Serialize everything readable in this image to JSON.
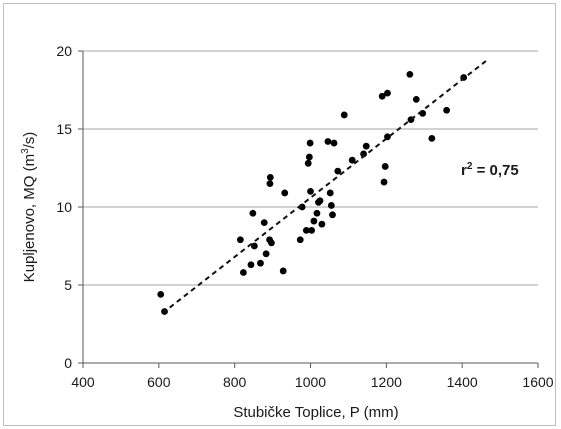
{
  "chart_data": {
    "type": "scatter",
    "xlabel": "Stubičke Toplice, P (mm)",
    "ylabel_main": "Kupljenovo, MQ (m",
    "ylabel_sup": "3",
    "ylabel_tail": "/s)",
    "xlim": [
      400,
      1600
    ],
    "ylim": [
      0,
      20
    ],
    "x_ticks": [
      "400",
      "600",
      "800",
      "1000",
      "1200",
      "1400",
      "1600"
    ],
    "y_ticks": [
      "0",
      "5",
      "10",
      "15",
      "20"
    ],
    "grid": "horizontal",
    "legend": "none",
    "annotation": {
      "main": "r",
      "sup": "2",
      "tail": " = 0,75"
    },
    "trendline": {
      "style": "dashed",
      "x": [
        610,
        1465
      ],
      "y": [
        3.2,
        19.4
      ]
    },
    "points": [
      {
        "x": 605,
        "y": 4.4
      },
      {
        "x": 615,
        "y": 3.3
      },
      {
        "x": 815,
        "y": 7.9
      },
      {
        "x": 823,
        "y": 5.8
      },
      {
        "x": 843,
        "y": 6.3
      },
      {
        "x": 848,
        "y": 9.6
      },
      {
        "x": 852,
        "y": 7.5
      },
      {
        "x": 868,
        "y": 6.4
      },
      {
        "x": 878,
        "y": 9.0
      },
      {
        "x": 883,
        "y": 7.0
      },
      {
        "x": 892,
        "y": 7.9
      },
      {
        "x": 893,
        "y": 11.5
      },
      {
        "x": 894,
        "y": 11.9
      },
      {
        "x": 897,
        "y": 7.7
      },
      {
        "x": 928,
        "y": 5.9
      },
      {
        "x": 932,
        "y": 10.9
      },
      {
        "x": 973,
        "y": 7.9
      },
      {
        "x": 978,
        "y": 10.0
      },
      {
        "x": 989,
        "y": 8.5
      },
      {
        "x": 994,
        "y": 12.8
      },
      {
        "x": 997,
        "y": 13.2
      },
      {
        "x": 999,
        "y": 14.1
      },
      {
        "x": 1000,
        "y": 11.0
      },
      {
        "x": 1003,
        "y": 8.5
      },
      {
        "x": 1009,
        "y": 9.1
      },
      {
        "x": 1017,
        "y": 9.6
      },
      {
        "x": 1021,
        "y": 10.3
      },
      {
        "x": 1025,
        "y": 10.4
      },
      {
        "x": 1030,
        "y": 8.9
      },
      {
        "x": 1046,
        "y": 14.2
      },
      {
        "x": 1052,
        "y": 10.9
      },
      {
        "x": 1055,
        "y": 10.1
      },
      {
        "x": 1058,
        "y": 9.5
      },
      {
        "x": 1062,
        "y": 14.1
      },
      {
        "x": 1072,
        "y": 12.3
      },
      {
        "x": 1089,
        "y": 15.9
      },
      {
        "x": 1110,
        "y": 13.0
      },
      {
        "x": 1140,
        "y": 13.4
      },
      {
        "x": 1147,
        "y": 13.9
      },
      {
        "x": 1189,
        "y": 17.1
      },
      {
        "x": 1194,
        "y": 11.6
      },
      {
        "x": 1197,
        "y": 12.6
      },
      {
        "x": 1203,
        "y": 14.5
      },
      {
        "x": 1203,
        "y": 17.3
      },
      {
        "x": 1262,
        "y": 18.5
      },
      {
        "x": 1265,
        "y": 15.6
      },
      {
        "x": 1279,
        "y": 16.9
      },
      {
        "x": 1296,
        "y": 16.0
      },
      {
        "x": 1320,
        "y": 14.4
      },
      {
        "x": 1359,
        "y": 16.2
      },
      {
        "x": 1404,
        "y": 18.3
      }
    ]
  }
}
